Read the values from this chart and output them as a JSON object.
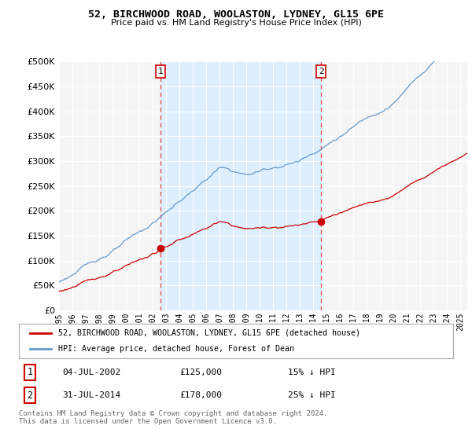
{
  "title1": "52, BIRCHWOOD ROAD, WOOLASTON, LYDNEY, GL15 6PE",
  "title2": "Price paid vs. HM Land Registry's House Price Index (HPI)",
  "legend_label1": "52, BIRCHWOOD ROAD, WOOLASTON, LYDNEY, GL15 6PE (detached house)",
  "legend_label2": "HPI: Average price, detached house, Forest of Dean",
  "annotation1_date": "04-JUL-2002",
  "annotation1_price": "£125,000",
  "annotation1_pct": "15% ↓ HPI",
  "annotation2_date": "31-JUL-2014",
  "annotation2_price": "£178,000",
  "annotation2_pct": "25% ↓ HPI",
  "footer": "Contains HM Land Registry data © Crown copyright and database right 2024.\nThis data is licensed under the Open Government Licence v3.0.",
  "sale1_x": 2002.58,
  "sale1_y": 125000,
  "sale2_x": 2014.58,
  "sale2_y": 178000,
  "ylim": [
    0,
    500000
  ],
  "xlim_start": 1995.0,
  "xlim_end": 2025.5,
  "line_color_property": "#cc0000",
  "line_color_hpi": "#6699cc",
  "shade_color": "#ddeeff",
  "vline_color": "#dd4444",
  "background_color": "#ffffff",
  "plot_bg_color": "#f5f5f5",
  "grid_color": "#ffffff"
}
